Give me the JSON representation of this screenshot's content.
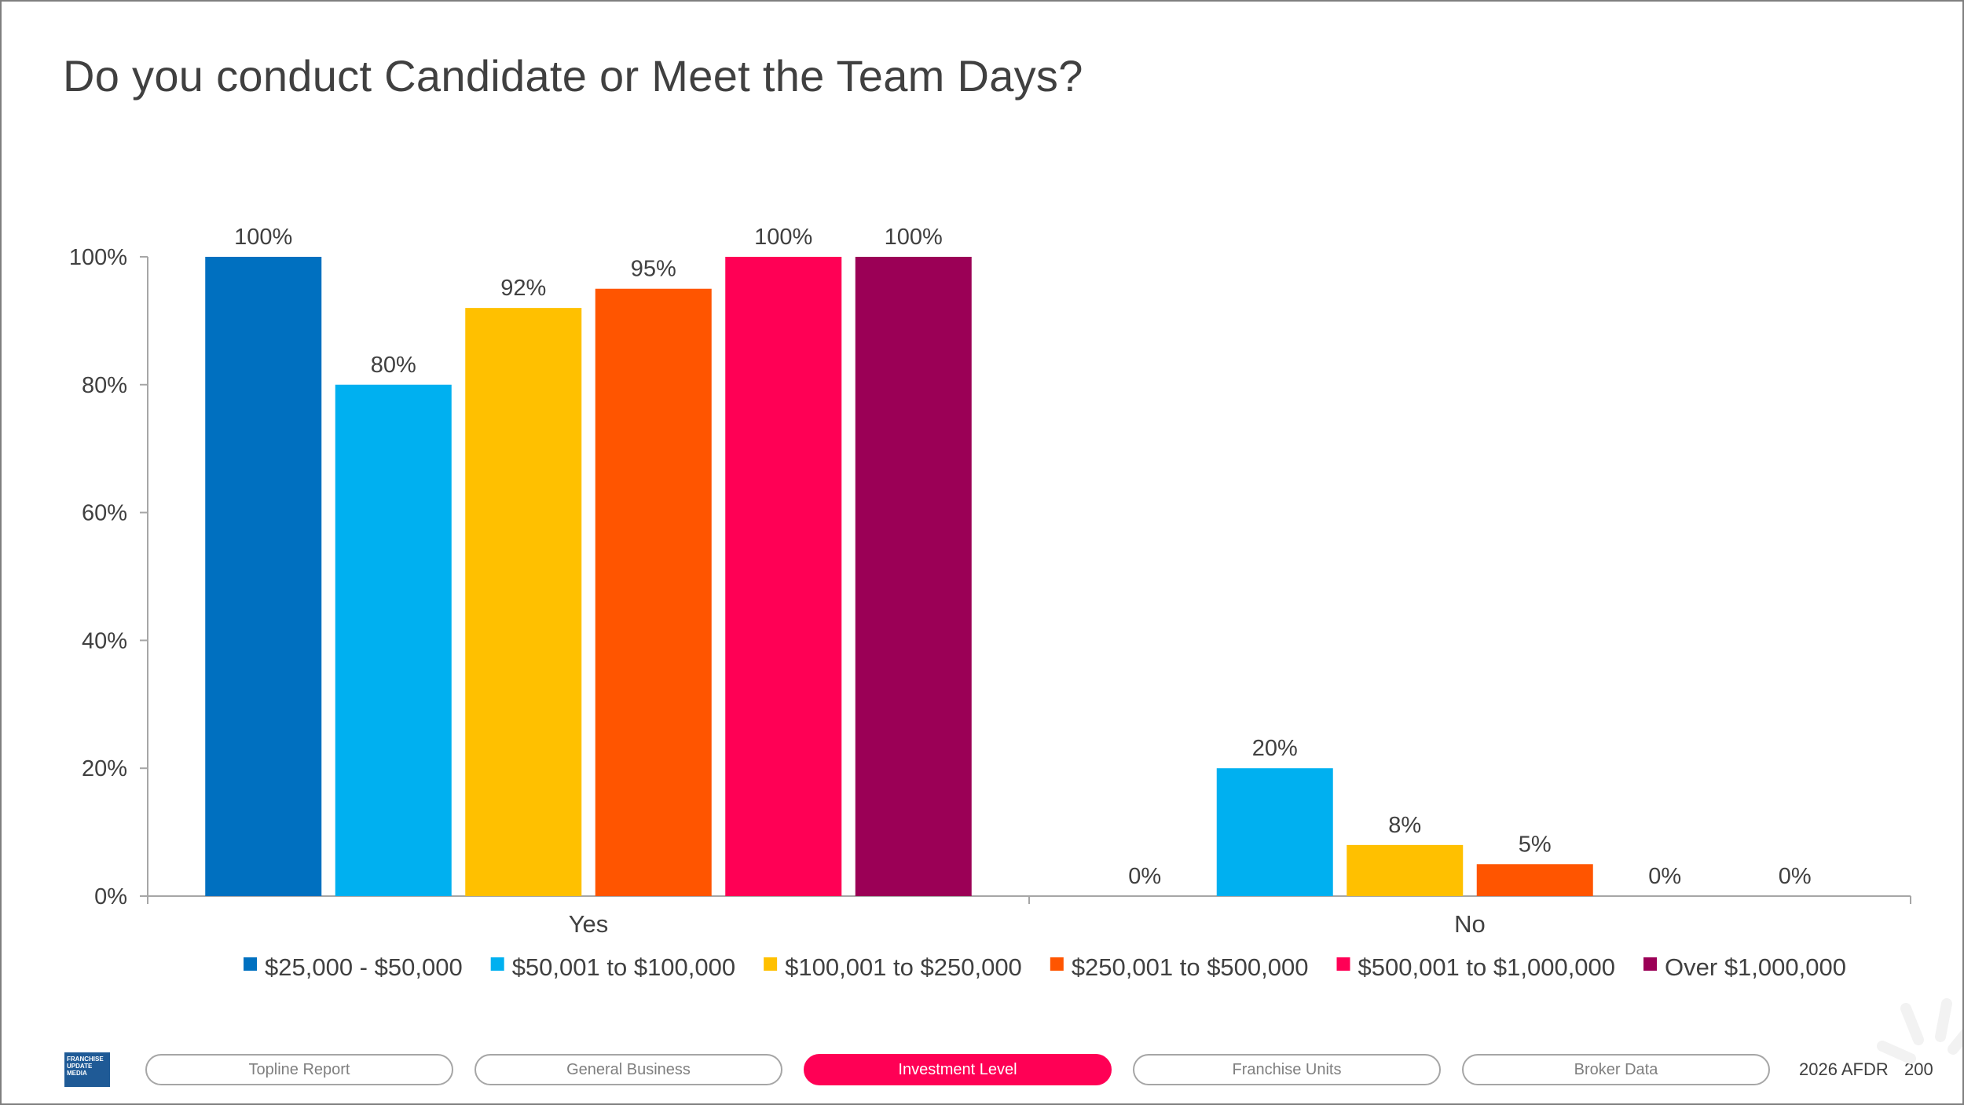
{
  "title": "Do you conduct Candidate or Meet the Team Days?",
  "chart_data": {
    "type": "bar",
    "categories": [
      "Yes",
      "No"
    ],
    "ylim": [
      0,
      100
    ],
    "yticks": [
      "0%",
      "20%",
      "40%",
      "60%",
      "80%",
      "100%"
    ],
    "ytick_values": [
      0,
      20,
      40,
      60,
      80,
      100
    ],
    "legend_position": "bottom",
    "series": [
      {
        "name": "$25,000 - $50,000",
        "color": "#0070c0",
        "values": [
          100,
          0
        ],
        "labels": [
          "100%",
          "0%"
        ]
      },
      {
        "name": "$50,001 to $100,000",
        "color": "#00b0f0",
        "values": [
          80,
          20
        ],
        "labels": [
          "80%",
          "20%"
        ]
      },
      {
        "name": "$100,001 to $250,000",
        "color": "#ffc000",
        "values": [
          92,
          8
        ],
        "labels": [
          "92%",
          "8%"
        ]
      },
      {
        "name": "$250,001 to $500,000",
        "color": "#ff5500",
        "values": [
          95,
          5
        ],
        "labels": [
          "95%",
          "5%"
        ]
      },
      {
        "name": "$500,001 to $1,000,000",
        "color": "#ff0055",
        "values": [
          100,
          0
        ],
        "labels": [
          "100%",
          "0%"
        ]
      },
      {
        "name": "Over $1,000,000",
        "color": "#9b0056",
        "values": [
          100,
          0
        ],
        "labels": [
          "100%",
          "0%"
        ]
      }
    ]
  },
  "footer": {
    "logo_lines": [
      "FRANCHISE",
      "UPDATE",
      "MEDIA"
    ],
    "nav": [
      {
        "label": "Topline Report",
        "active": false
      },
      {
        "label": "General Business",
        "active": false
      },
      {
        "label": "Investment Level",
        "active": true
      },
      {
        "label": "Franchise Units",
        "active": false
      },
      {
        "label": "Broker Data",
        "active": false
      }
    ],
    "report": "2026 AFDR",
    "page": "200",
    "active_color": "#ff0055"
  }
}
